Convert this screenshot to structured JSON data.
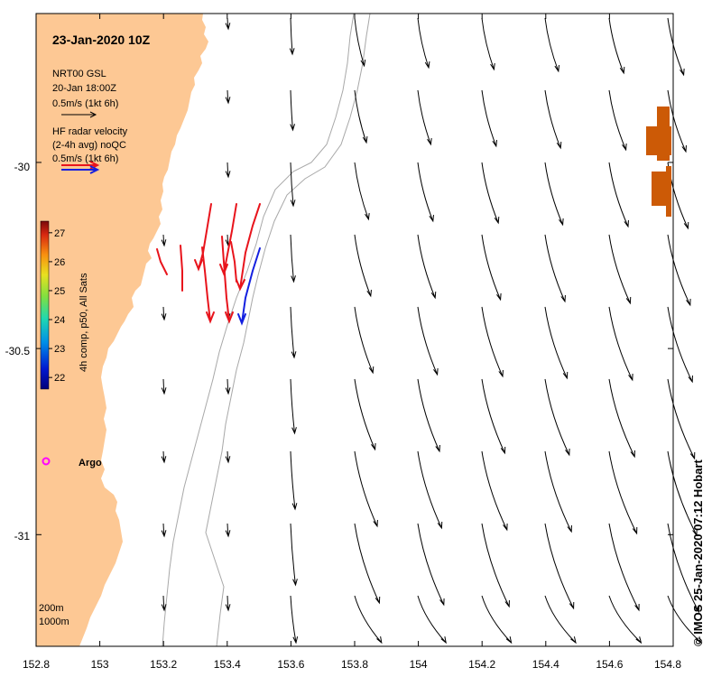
{
  "title": "23-Jan-2020 10Z",
  "model_legend": {
    "name": "NRT00 GSL",
    "time": "20-Jan 18:00Z",
    "scale": "0.5m/s (1kt 6h)"
  },
  "radar_legend": {
    "line1": "HF radar velocity",
    "line2": "(2-4h avg) noQC",
    "scale": "0.5m/s (1kt 6h)"
  },
  "colorbar": {
    "label": "4h comp, p50, All Sats",
    "ticks": [
      22,
      23,
      24,
      25,
      26,
      27
    ],
    "min": 21.6,
    "max": 27.4
  },
  "argo_label": "Argo",
  "contour_labels": [
    "200m",
    "1000m"
  ],
  "credit": "© IMOS 25-Jan-2020 07:12 Hobart",
  "axes": {
    "lon_min": 152.8,
    "lon_max": 154.8,
    "lat_min": -31.3,
    "lat_max": -29.6,
    "x_ticks": [
      "152.8",
      "153",
      "153.2",
      "153.4",
      "153.6",
      "153.8",
      "154",
      "154.2",
      "154.4",
      "154.6",
      "154.8"
    ],
    "y_ticks": [
      "-30",
      "-30.5",
      "-31"
    ]
  },
  "colors": {
    "land": "#fdc894",
    "model_arrow": "#000000",
    "radar_arrow": "#e8141c",
    "radar_arrow_blue": "#1420e0",
    "contour": "#a8a8a8",
    "argo": "#ff00ff",
    "sst_patch": "#cc5a06"
  }
}
